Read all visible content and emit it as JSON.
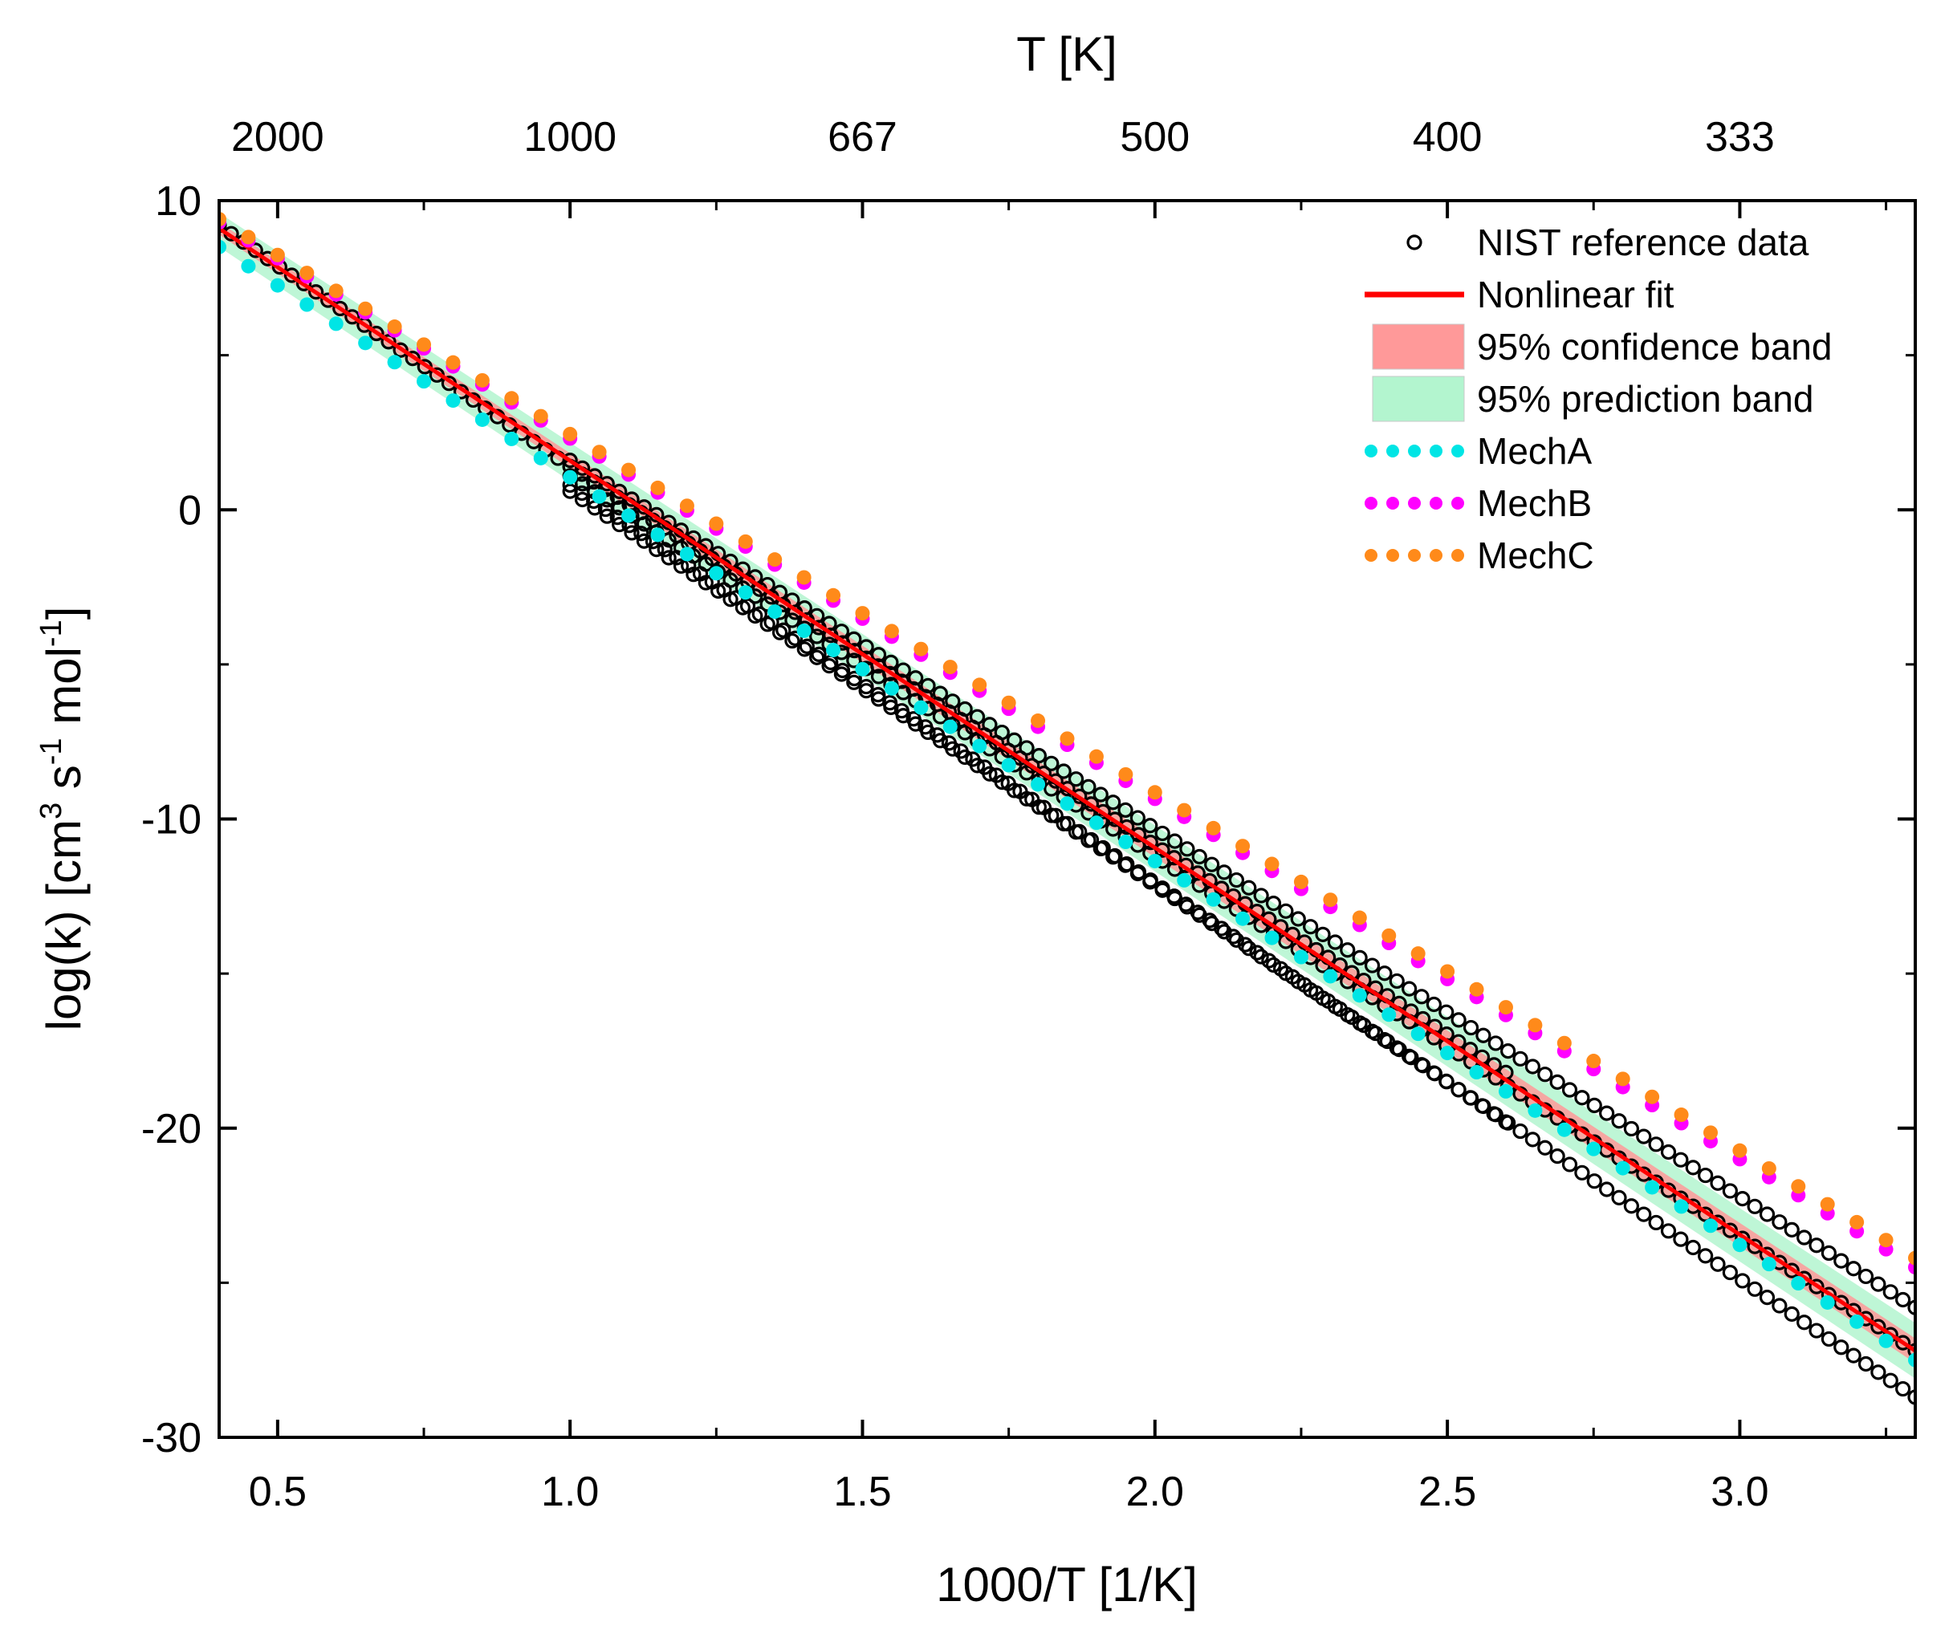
{
  "chart_data": {
    "type": "scatter",
    "x_axis": {
      "label": "1000/T [1/K]",
      "range": [
        0.4,
        3.3
      ],
      "ticks": [
        0.5,
        1.0,
        1.5,
        2.0,
        2.5,
        3.0
      ],
      "tick_labels": [
        "0.5",
        "1.0",
        "1.5",
        "2.0",
        "2.5",
        "3.0"
      ],
      "minor_ticks": [
        0.75,
        1.25,
        1.75,
        2.25,
        2.75,
        3.25
      ]
    },
    "top_axis": {
      "label": "T [K]",
      "ticks": [
        0.5,
        1.0,
        1.5,
        2.0,
        2.5,
        3.0
      ],
      "tick_labels": [
        "2000",
        "1000",
        "667",
        "500",
        "400",
        "333"
      ]
    },
    "y_axis": {
      "label_parts": {
        "prefix": "log(k) [cm",
        "sup1": "3",
        "mid": " s",
        "sup2": "-1",
        "mid2": " mol",
        "sup3": "-1",
        "suffix": "]"
      },
      "range": [
        -30,
        10
      ],
      "ticks": [
        10,
        0,
        -10,
        -20,
        -30
      ],
      "tick_labels": [
        "10",
        "0",
        "-10",
        "-20",
        "-30"
      ],
      "minor_ticks": [
        5,
        -5,
        -15,
        -25
      ]
    },
    "series": [
      {
        "name": "NIST reference data",
        "kind": "open-circles",
        "color": "#000000",
        "groups": [
          {
            "x_start": 0.4,
            "x_end": 1.0,
            "y_start": 9.2,
            "y_end": 1.4,
            "count": 30
          },
          {
            "x_start": 1.0,
            "x_end": 3.3,
            "y_start": 1.6,
            "y_end": -25.8,
            "count": 110
          },
          {
            "x_start": 1.0,
            "x_end": 3.3,
            "y_start": 0.6,
            "y_end": -28.7,
            "count": 110
          },
          {
            "x_start": 1.0,
            "x_end": 3.3,
            "y_start": 1.1,
            "y_end": -27.2,
            "count": 110
          },
          {
            "x_start": 1.0,
            "x_end": 2.6,
            "y_start": 1.4,
            "y_end": -18.2,
            "count": 80
          },
          {
            "x_start": 1.0,
            "x_end": 2.6,
            "y_start": 0.8,
            "y_end": -19.8,
            "count": 80
          }
        ]
      },
      {
        "name": "Nonlinear fit",
        "kind": "line",
        "color": "#ff0000",
        "x": [
          0.4,
          3.3
        ],
        "y": [
          9.1,
          -27.2
        ]
      },
      {
        "name": "95% confidence band",
        "kind": "band",
        "color": "#ff9999",
        "x": [
          0.4,
          3.3
        ],
        "y_upper": [
          9.3,
          -26.8
        ],
        "y_lower": [
          8.9,
          -27.6
        ]
      },
      {
        "name": "95% prediction band",
        "kind": "band",
        "color": "#b3f5cf",
        "x": [
          0.4,
          3.3
        ],
        "y_upper": [
          9.6,
          -26.3
        ],
        "y_lower": [
          8.5,
          -28.1
        ]
      },
      {
        "name": "MechA",
        "kind": "dots",
        "color": "#00e5e5",
        "x_start": 0.4,
        "x_end": 3.3,
        "y_start": 8.5,
        "y_end": -27.5,
        "step": 0.05
      },
      {
        "name": "MechB",
        "kind": "dots",
        "color": "#ff00ff",
        "x_start": 0.4,
        "x_end": 3.3,
        "y_start": 9.3,
        "y_end": -24.5,
        "step": 0.05
      },
      {
        "name": "MechC",
        "kind": "dots",
        "color": "#ff8a1a",
        "x_start": 0.4,
        "x_end": 3.3,
        "y_start": 9.4,
        "y_end": -24.2,
        "step": 0.05
      }
    ],
    "legend": {
      "position": "top-right",
      "entries": [
        {
          "label": "NIST reference data",
          "kind": "open-circle",
          "color": "#000000"
        },
        {
          "label": "Nonlinear fit",
          "kind": "line",
          "color": "#ff0000"
        },
        {
          "label": "95% confidence band",
          "kind": "box",
          "color": "#ff9999"
        },
        {
          "label": "95% prediction band",
          "kind": "box",
          "color": "#b3f5cf"
        },
        {
          "label": "MechA",
          "kind": "dots",
          "color": "#00e5e5"
        },
        {
          "label": "MechB",
          "kind": "dots",
          "color": "#ff00ff"
        },
        {
          "label": "MechC",
          "kind": "dots",
          "color": "#ff8a1a"
        }
      ]
    },
    "grid": false
  }
}
